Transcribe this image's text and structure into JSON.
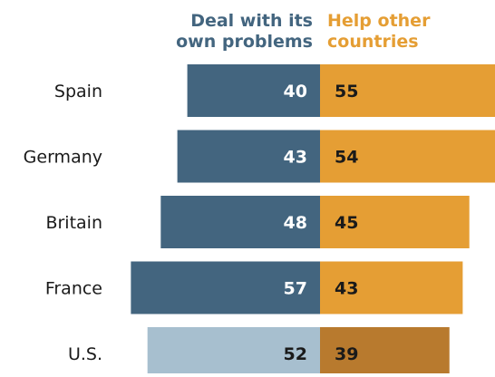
{
  "chart_data": {
    "type": "bar",
    "orientation": "horizontal-diverging",
    "categories": [
      "Spain",
      "Germany",
      "Britain",
      "France",
      "U.S."
    ],
    "series": [
      {
        "name": "Deal with its own problems",
        "legend_lines": [
          "Deal with its",
          "own problems"
        ],
        "values": [
          40,
          43,
          48,
          57,
          52
        ],
        "color": "#43657f",
        "highlight_color": "#a7bfcf",
        "label_color": "#ffffff",
        "highlight_label_color": "#1a1a1a"
      },
      {
        "name": "Help other countries",
        "legend_lines": [
          "Help other",
          "countries"
        ],
        "values": [
          55,
          54,
          45,
          43,
          39
        ],
        "color": "#e59e34",
        "highlight_color": "#b87a2e",
        "label_color": "#1a1a1a",
        "highlight_label_color": "#1a1a1a"
      }
    ],
    "highlighted_category": "U.S.",
    "legend_position": "top",
    "grid": false
  }
}
